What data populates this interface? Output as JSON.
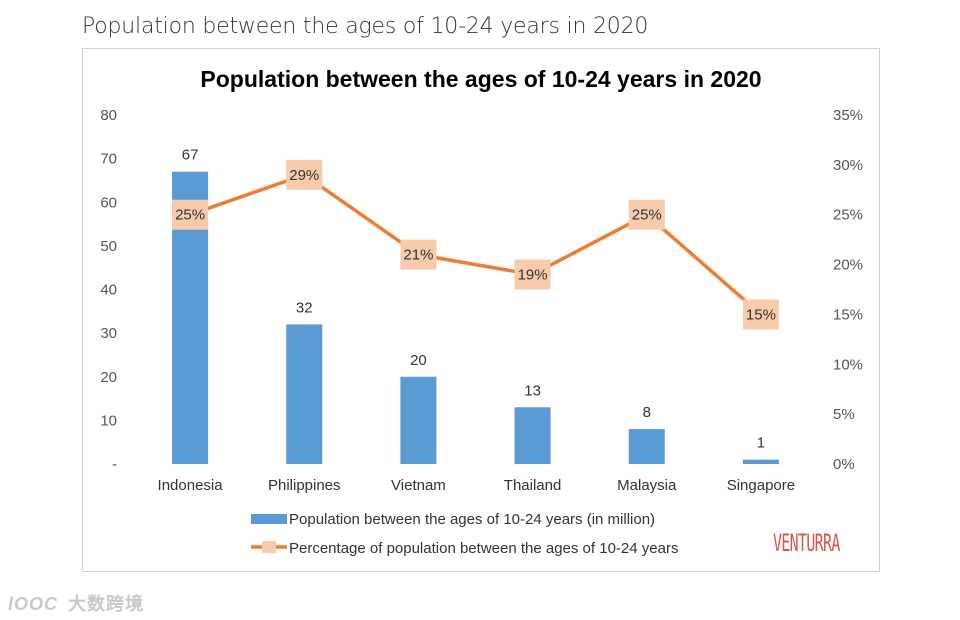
{
  "page": {
    "heading": "Population between the ages of 10-24 years in 2020"
  },
  "colors": {
    "bar": "#5b9bd5",
    "line": "#ed7d31",
    "marker_fill": "#f8cbad",
    "brand": "#d9534f"
  },
  "brand": {
    "logo_text": "VENTURRA"
  },
  "watermark": {
    "logo": "lOOC",
    "text": "大数跨境"
  },
  "chart_data": {
    "type": "bar",
    "title": "Population between the ages of 10-24 years in 2020",
    "categories": [
      "Indonesia",
      "Philippines",
      "Vietnam",
      "Thailand",
      "Malaysia",
      "Singapore"
    ],
    "series": [
      {
        "name": "Population between the ages of 10-24 years (in million)",
        "type": "bar",
        "axis": "left",
        "values": [
          67,
          32,
          20,
          13,
          8,
          1
        ],
        "labels": [
          "67",
          "32",
          "20",
          "13",
          "8",
          "1"
        ]
      },
      {
        "name": "Percentage of population between the ages of 10-24 years",
        "type": "line",
        "axis": "right",
        "values": [
          25,
          29,
          21,
          19,
          25,
          15
        ],
        "labels": [
          "25%",
          "29%",
          "21%",
          "19%",
          "25%",
          "15%"
        ]
      }
    ],
    "y_left": {
      "ylim": [
        0,
        80
      ],
      "ticks": [
        "-",
        "10",
        "20",
        "30",
        "40",
        "50",
        "60",
        "70",
        "80"
      ]
    },
    "y_right": {
      "ylim": [
        0,
        35
      ],
      "ticks": [
        "0%",
        "5%",
        "10%",
        "15%",
        "20%",
        "25%",
        "30%",
        "35%"
      ]
    },
    "grid": false,
    "legend_position": "bottom"
  }
}
